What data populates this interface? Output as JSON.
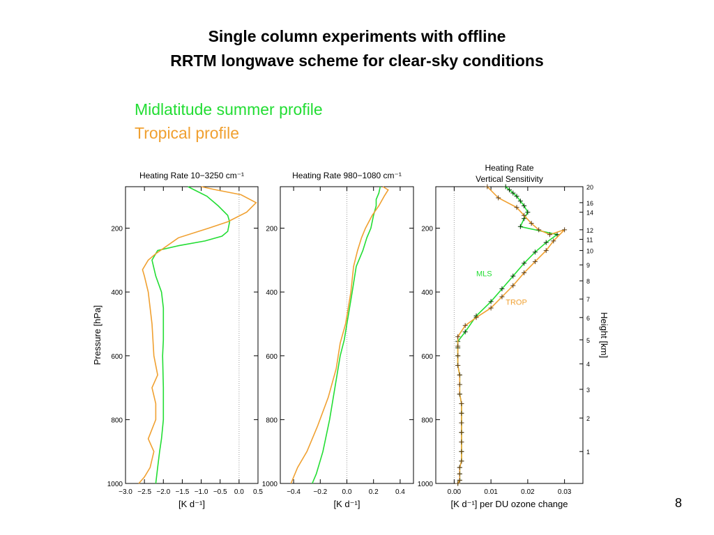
{
  "slide": {
    "title_line1": "Single column experiments with offline",
    "title_line2": "RRTM longwave scheme for clear-sky conditions",
    "legend_mls": "Midlatitude summer profile",
    "legend_trop": "Tropical profile",
    "page_number": "8"
  },
  "colors": {
    "mls": "#22dd33",
    "trop": "#f0a030",
    "axis": "#000000",
    "zero_line": "#999999"
  },
  "chart_data": [
    {
      "type": "line",
      "title": "Heating Rate  10−3250  cm⁻¹",
      "xlabel": "[K d⁻¹]",
      "ylabel": "Pressure   [hPa]",
      "xlim": [
        -3.0,
        0.5
      ],
      "ylim": [
        1000,
        70
      ],
      "yreversed": true,
      "xticks": [
        -3.0,
        -2.5,
        -2.0,
        -1.5,
        -1.0,
        -0.5,
        0.0,
        0.5
      ],
      "xtick_labels": [
        "−3.0",
        "−2.5",
        "−2.0",
        "−1.5",
        "−1.0",
        "−0.5",
        "0.0",
        "0.5"
      ],
      "yticks": [
        200,
        400,
        600,
        800,
        1000
      ],
      "ytick_labels": [
        "200",
        "400",
        "600",
        "800",
        "1000"
      ],
      "zero_line": 0.0,
      "series": [
        {
          "name": "Midlatitude summer profile",
          "color": "#22dd33",
          "x": [
            -1.35,
            -0.85,
            -0.55,
            -0.3,
            -0.25,
            -0.3,
            -0.45,
            -0.9,
            -1.6,
            -2.15,
            -2.3,
            -2.2,
            -2.05,
            -2.0,
            -2.0,
            -2.0,
            -2.02,
            -2.0,
            -2.0,
            -2.05,
            -2.1,
            -2.15,
            -2.2
          ],
          "y": [
            70,
            100,
            130,
            160,
            180,
            210,
            225,
            240,
            255,
            270,
            300,
            350,
            400,
            450,
            500,
            550,
            600,
            700,
            800,
            860,
            900,
            950,
            1000
          ]
        },
        {
          "name": "Tropical profile",
          "color": "#f0a030",
          "x": [
            -1.0,
            -0.6,
            0.05,
            0.45,
            0.2,
            -0.3,
            -0.8,
            -1.6,
            -2.2,
            -2.4,
            -2.55,
            -2.5,
            -2.4,
            -2.3,
            -2.25,
            -2.15,
            -2.3,
            -2.2,
            -2.2,
            -2.4,
            -2.25,
            -2.35,
            -2.5,
            -2.65
          ],
          "y": [
            70,
            80,
            95,
            120,
            150,
            180,
            200,
            230,
            280,
            300,
            330,
            350,
            400,
            500,
            600,
            660,
            700,
            750,
            800,
            860,
            900,
            950,
            980,
            1000
          ]
        }
      ]
    },
    {
      "type": "line",
      "title": "Heating Rate  980−1080  cm⁻¹",
      "xlabel": "[K d⁻¹]",
      "ylabel": "",
      "xlim": [
        -0.5,
        0.5
      ],
      "ylim": [
        1000,
        70
      ],
      "yreversed": true,
      "xticks": [
        -0.4,
        -0.2,
        0.0,
        0.2,
        0.4
      ],
      "xtick_labels": [
        "−0.4",
        "−0.2",
        "0.0",
        "0.2",
        "0.4"
      ],
      "yticks": [
        200,
        400,
        600,
        800,
        1000
      ],
      "ytick_labels": [
        "200",
        "400",
        "600",
        "800",
        "1000"
      ],
      "zero_line": 0.0,
      "series": [
        {
          "name": "Midlatitude summer profile",
          "color": "#22dd33",
          "x": [
            0.25,
            0.24,
            0.22,
            0.22,
            0.2,
            0.18,
            0.15,
            0.12,
            0.07,
            0.04,
            0.02,
            0.0,
            -0.02,
            -0.05,
            -0.09,
            -0.13,
            -0.18,
            -0.23,
            -0.26
          ],
          "y": [
            70,
            90,
            110,
            130,
            160,
            200,
            230,
            270,
            320,
            400,
            450,
            500,
            550,
            600,
            700,
            800,
            900,
            970,
            1000
          ]
        },
        {
          "name": "Tropical profile",
          "color": "#f0a030",
          "x": [
            0.27,
            0.31,
            0.28,
            0.24,
            0.19,
            0.14,
            0.11,
            0.08,
            0.05,
            0.03,
            0.01,
            -0.01,
            -0.05,
            -0.08,
            -0.14,
            -0.22,
            -0.3,
            -0.37,
            -0.42
          ],
          "y": [
            70,
            80,
            100,
            130,
            160,
            200,
            230,
            270,
            320,
            400,
            450,
            500,
            560,
            640,
            730,
            820,
            900,
            950,
            1000
          ]
        }
      ]
    },
    {
      "type": "line",
      "title": "Heating Rate",
      "subtitle": "Vertical Sensitivity",
      "xlabel": "[K d⁻¹] per DU ozone change",
      "ylabel": "",
      "y2label": "Height  [km]",
      "xlim": [
        -0.005,
        0.035
      ],
      "ylim": [
        1000,
        70
      ],
      "yreversed": true,
      "xticks": [
        0.0,
        0.01,
        0.02,
        0.03
      ],
      "xtick_labels": [
        "0.00",
        "0.01",
        "0.02",
        "0.03"
      ],
      "yticks": [
        200,
        400,
        600,
        800,
        1000
      ],
      "ytick_labels": [
        "200",
        "400",
        "600",
        "800",
        "1000"
      ],
      "height_ticks": [
        {
          "label": "20",
          "p": 70
        },
        {
          "label": "16",
          "p": 120
        },
        {
          "label": "14",
          "p": 150
        },
        {
          "label": "12",
          "p": 205
        },
        {
          "label": "11",
          "p": 235
        },
        {
          "label": "10",
          "p": 270
        },
        {
          "label": "9",
          "p": 315
        },
        {
          "label": "8",
          "p": 365
        },
        {
          "label": "7",
          "p": 422
        },
        {
          "label": "6",
          "p": 480
        },
        {
          "label": "5",
          "p": 550
        },
        {
          "label": "4",
          "p": 625
        },
        {
          "label": "3",
          "p": 705
        },
        {
          "label": "2",
          "p": 795
        },
        {
          "label": "1",
          "p": 900
        }
      ],
      "zero_line": 0.0,
      "annotations": [
        {
          "text": "MLS",
          "x": 0.006,
          "p": 350,
          "color": "#22dd33"
        },
        {
          "text": "TROP",
          "x": 0.014,
          "p": 440,
          "color": "#f0a030"
        }
      ],
      "series": [
        {
          "name": "MLS",
          "color": "#22dd33",
          "marker": "+",
          "x": [
            0.014,
            0.015,
            0.016,
            0.017,
            0.018,
            0.019,
            0.02,
            0.019,
            0.018,
            0.028,
            0.025,
            0.022,
            0.019,
            0.016,
            0.013,
            0.01,
            0.006,
            0.003,
            0.001,
            0.001,
            0.001,
            0.001,
            0.0015,
            0.0015,
            0.0015,
            0.002,
            0.002,
            0.002,
            0.002,
            0.002,
            0.002,
            0.002,
            0.0015,
            0.0015,
            0.0015,
            0.001
          ],
          "y": [
            70,
            80,
            90,
            100,
            115,
            130,
            150,
            170,
            195,
            220,
            245,
            275,
            310,
            350,
            390,
            430,
            475,
            525,
            555,
            575,
            600,
            630,
            660,
            690,
            720,
            750,
            780,
            810,
            840,
            870,
            900,
            930,
            950,
            970,
            990,
            1000
          ]
        },
        {
          "name": "TROP",
          "color": "#f0a030",
          "marker": "+",
          "x": [
            0.009,
            0.012,
            0.017,
            0.019,
            0.021,
            0.023,
            0.026,
            0.03,
            0.027,
            0.025,
            0.022,
            0.019,
            0.016,
            0.013,
            0.01,
            0.006,
            0.003,
            0.001,
            0.001,
            0.001,
            0.001,
            0.0015,
            0.0015,
            0.0015,
            0.002,
            0.002,
            0.002,
            0.002,
            0.002,
            0.002,
            0.002,
            0.0015,
            0.0015,
            0.0015,
            0.001
          ],
          "y": [
            70,
            105,
            135,
            160,
            185,
            205,
            220,
            205,
            240,
            270,
            305,
            340,
            380,
            415,
            450,
            480,
            505,
            540,
            570,
            600,
            630,
            660,
            690,
            720,
            750,
            780,
            810,
            840,
            870,
            900,
            930,
            950,
            970,
            990,
            1000
          ]
        }
      ]
    }
  ]
}
